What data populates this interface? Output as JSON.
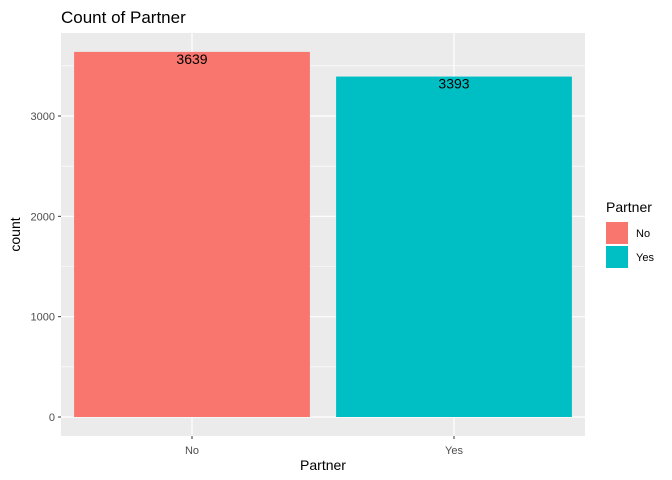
{
  "chart_data": {
    "type": "bar",
    "title": "Count of Partner",
    "xlabel": "Partner",
    "ylabel": "count",
    "categories": [
      "No",
      "Yes"
    ],
    "values": [
      3639,
      3393
    ],
    "data_labels": [
      "3639",
      "3393"
    ],
    "colors": [
      "#F8766D",
      "#00BFC4"
    ],
    "ylim": [
      0,
      3820
    ],
    "yticks": [
      0,
      1000,
      2000,
      3000
    ],
    "ytick_labels": [
      "0",
      "1000",
      "2000",
      "3000"
    ],
    "grid": true,
    "legend": {
      "title": "Partner",
      "placement": "right",
      "entries": [
        {
          "label": "No",
          "color": "#F8766D"
        },
        {
          "label": "Yes",
          "color": "#00BFC4"
        }
      ]
    }
  },
  "theme": {
    "panel_background": "#EBEBEB",
    "grid_color": "#FFFFFF",
    "tick_color": "#333333"
  }
}
